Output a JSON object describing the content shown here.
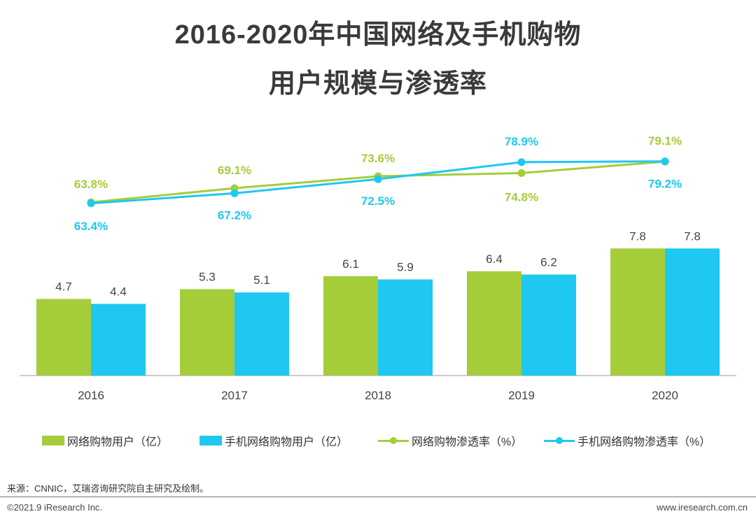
{
  "title_line1": "2016-2020年中国网络及手机购物",
  "title_line2": "用户规模与渗透率",
  "colors": {
    "green": "#a5cd39",
    "blue": "#1ec8f0",
    "axis": "#bbbbbb"
  },
  "legend": [
    "网络购物用户（亿）",
    "手机网络购物用户（亿）",
    "网络购物渗透率（%）",
    "手机网络购物渗透率（%）"
  ],
  "chart_data": {
    "type": "bar+line",
    "categories": [
      "2016",
      "2017",
      "2018",
      "2019",
      "2020"
    ],
    "bar_series": [
      {
        "name": "网络购物用户（亿）",
        "values": [
          4.7,
          5.3,
          6.1,
          6.4,
          7.8
        ],
        "labels": [
          "4.7",
          "5.3",
          "6.1",
          "6.4",
          "7.8"
        ]
      },
      {
        "name": "手机网络购物用户（亿）",
        "values": [
          4.4,
          5.1,
          5.9,
          6.2,
          7.8
        ],
        "labels": [
          "4.4",
          "5.1",
          "5.9",
          "6.2",
          "7.8"
        ]
      }
    ],
    "line_series": [
      {
        "name": "网络购物渗透率（%）",
        "values": [
          63.8,
          69.1,
          73.6,
          74.8,
          79.1
        ],
        "labels": [
          "63.8%",
          "69.1%",
          "73.6%",
          "74.8%",
          "79.1%"
        ]
      },
      {
        "name": "手机网络购物渗透率（%）",
        "values": [
          63.4,
          67.2,
          72.5,
          78.9,
          79.2
        ],
        "labels": [
          "63.4%",
          "67.2%",
          "72.5%",
          "78.9%",
          "79.2%"
        ]
      }
    ],
    "bar_ylim": [
      0,
      8
    ],
    "line_ylim": [
      50,
      85
    ]
  },
  "source": "来源：CNNIC，艾瑞咨询研究院自主研究及绘制。",
  "copyright": "©2021.9 iResearch Inc.",
  "website": "www.iresearch.com.cn"
}
